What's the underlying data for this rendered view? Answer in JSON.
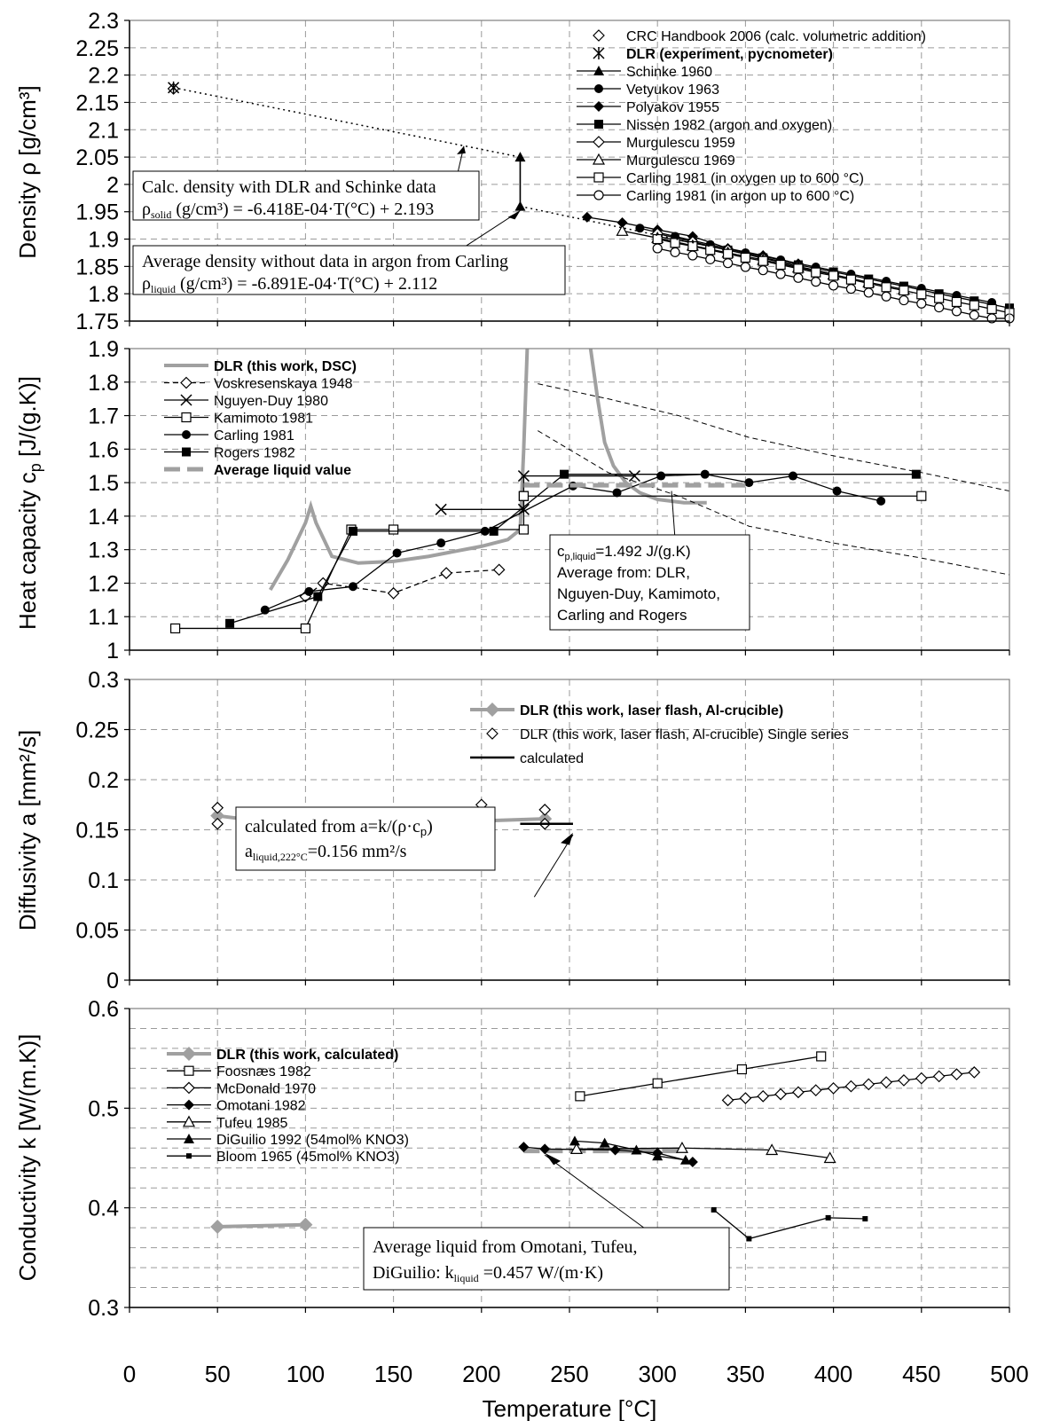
{
  "x_axis": {
    "label": "Temperature [°C]",
    "ticks": [
      "0",
      "50",
      "100",
      "150",
      "200",
      "250",
      "300",
      "350",
      "400",
      "450",
      "500"
    ],
    "range": [
      0,
      500
    ]
  },
  "chart_data": [
    {
      "type": "line",
      "ylabel": "Density ρ [g/cm³]",
      "ylim": [
        1.75,
        2.3
      ],
      "yticks": [
        "1.75",
        "1.8",
        "1.85",
        "1.9",
        "1.95",
        "2",
        "2.05",
        "2.1",
        "2.15",
        "2.2",
        "2.25",
        "2.3"
      ],
      "legend_position": "top-right",
      "series": [
        {
          "name": "CRC Handbook 2006 (calc. volumetric addition)",
          "marker": "diamond-open",
          "x": [
            25
          ],
          "y": [
            2.175
          ]
        },
        {
          "name": "DLR (experiment, pycnometer)",
          "bold": true,
          "marker": "asterisk",
          "x": [
            25
          ],
          "y": [
            2.177
          ]
        },
        {
          "name": "Schinke 1960",
          "marker": "triangle-filled",
          "x": [
            222,
            222
          ],
          "y": [
            2.05,
            1.96
          ]
        },
        {
          "name": "Vetyukov 1963",
          "marker": "circle-filled",
          "x": [
            290,
            310,
            330,
            350,
            370,
            390,
            410,
            430,
            450,
            470,
            490
          ],
          "y": [
            1.92,
            1.905,
            1.89,
            1.875,
            1.862,
            1.849,
            1.836,
            1.823,
            1.81,
            1.797,
            1.784
          ]
        },
        {
          "name": "Polyakov 1955",
          "marker": "diamond-filled",
          "x": [
            260,
            280,
            300,
            320,
            340,
            360,
            380
          ],
          "y": [
            1.94,
            1.93,
            1.917,
            1.905,
            1.883,
            1.87,
            1.855
          ]
        },
        {
          "name": "Nissen 1982 (argon and oxygen)",
          "marker": "square-filled",
          "x": [
            300,
            320,
            340,
            360,
            380,
            400,
            420,
            440,
            460,
            480,
            500
          ],
          "y": [
            1.905,
            1.893,
            1.88,
            1.866,
            1.853,
            1.84,
            1.827,
            1.814,
            1.8,
            1.787,
            1.774
          ]
        },
        {
          "name": "Murgulescu 1959",
          "marker": "diamond-open",
          "x": [
            300,
            320,
            340,
            360,
            380,
            400
          ],
          "y": [
            1.91,
            1.895,
            1.88,
            1.865,
            1.85,
            1.836
          ]
        },
        {
          "name": "Murgulescu 1969",
          "marker": "triangle-open",
          "x": [
            280,
            300,
            320,
            340,
            360,
            380,
            400,
            420,
            440
          ],
          "y": [
            1.915,
            1.902,
            1.888,
            1.875,
            1.862,
            1.848,
            1.835,
            1.821,
            1.808
          ]
        },
        {
          "name": "Carling 1981 (in oxygen up to 600 °C)",
          "marker": "square-open",
          "x": [
            300,
            310,
            320,
            330,
            340,
            350,
            360,
            370,
            380,
            390,
            400,
            410,
            420,
            430,
            440,
            450,
            460,
            470,
            480,
            490,
            500
          ],
          "y": [
            1.9,
            1.893,
            1.887,
            1.88,
            1.873,
            1.866,
            1.86,
            1.853,
            1.846,
            1.839,
            1.833,
            1.826,
            1.819,
            1.812,
            1.806,
            1.799,
            1.792,
            1.785,
            1.779,
            1.772,
            1.765
          ]
        },
        {
          "name": "Carling 1981 (in argon up to 600 °C)",
          "marker": "circle-open",
          "x": [
            300,
            310,
            320,
            330,
            340,
            350,
            360,
            370,
            380,
            390,
            400,
            410,
            420,
            430,
            440,
            450,
            460,
            470,
            480,
            490,
            500
          ],
          "y": [
            1.883,
            1.876,
            1.87,
            1.863,
            1.856,
            1.849,
            1.843,
            1.836,
            1.829,
            1.822,
            1.815,
            1.809,
            1.802,
            1.795,
            1.788,
            1.782,
            1.775,
            1.768,
            1.761,
            1.755,
            1.755
          ]
        }
      ],
      "annotations": [
        {
          "line1": "Calc. density with DLR and Schinke data",
          "line2_main": "ρ",
          "line2_sub": "solid",
          "line2_rest": " (g/cm³) = -6.418E-04·T(°C) + 2.193"
        },
        {
          "line1": "Average density without data in argon from Carling",
          "line2_main": "ρ",
          "line2_sub": "liquid",
          "line2_rest": " (g/cm³) = -6.891E-04·T(°C) + 2.112"
        }
      ]
    },
    {
      "type": "line",
      "ylabel_main": "Heat capacity c",
      "ylabel_sub": "p",
      "ylabel_rest": " [J/(g.K)]",
      "ylim": [
        1,
        1.9
      ],
      "yticks": [
        "1",
        "1.1",
        "1.2",
        "1.3",
        "1.4",
        "1.5",
        "1.6",
        "1.7",
        "1.8",
        "1.9"
      ],
      "legend_position": "top-left",
      "series": [
        {
          "name": "DLR (this work, DSC)",
          "bold": true,
          "marker": "thick-gray-line",
          "x": [
            80,
            90,
            100,
            103,
            106,
            115,
            130,
            150,
            170,
            200,
            215,
            222,
            224,
            225,
            226
          ],
          "y": [
            1.18,
            1.27,
            1.38,
            1.43,
            1.38,
            1.28,
            1.26,
            1.265,
            1.28,
            1.31,
            1.33,
            1.36,
            1.6,
            1.75,
            1.9
          ]
        },
        {
          "name": "Voskresenskaya 1948",
          "marker": "diamond-open",
          "x": [
            100,
            110,
            150,
            180,
            210
          ],
          "y": [
            1.16,
            1.2,
            1.17,
            1.23,
            1.24
          ]
        },
        {
          "name": "Nguyen-Duy 1980",
          "marker": "cross",
          "x": [
            177,
            224,
            224,
            287
          ],
          "y": [
            1.42,
            1.42,
            1.52,
            1.52
          ]
        },
        {
          "name": "Kamimoto 1981",
          "marker": "square-open",
          "x": [
            26,
            100,
            126,
            150,
            224,
            224,
            224,
            450
          ],
          "y": [
            1.065,
            1.065,
            1.36,
            1.36,
            1.36,
            1.46,
            1.46,
            1.46
          ]
        },
        {
          "name": "Carling 1981",
          "marker": "circle-filled",
          "x": [
            77,
            102,
            127,
            152,
            177,
            202,
            252,
            277,
            302,
            327,
            352,
            377,
            402,
            427
          ],
          "y": [
            1.12,
            1.175,
            1.19,
            1.29,
            1.32,
            1.355,
            1.49,
            1.47,
            1.52,
            1.525,
            1.5,
            1.52,
            1.475,
            1.445
          ]
        },
        {
          "name": "Rogers 1982",
          "marker": "square-filled",
          "x": [
            57,
            107,
            127,
            207,
            247,
            447
          ],
          "y": [
            1.08,
            1.16,
            1.355,
            1.355,
            1.525,
            1.525
          ]
        },
        {
          "name": "Average liquid value",
          "bold": true,
          "marker": "dashed-gray",
          "x": [
            224,
            350
          ],
          "y": [
            1.492,
            1.492
          ]
        }
      ],
      "extra_curves": [
        {
          "name": "DLR decline",
          "x": [
            262,
            266,
            270,
            275,
            282,
            290,
            300,
            315,
            328
          ],
          "y": [
            1.9,
            1.75,
            1.62,
            1.55,
            1.5,
            1.47,
            1.45,
            1.44,
            1.44
          ]
        },
        {
          "name": "Voskresenskaya upper",
          "x": [
            232,
            272,
            312,
            352,
            400,
            450,
            500
          ],
          "y": [
            1.795,
            1.75,
            1.7,
            1.635,
            1.58,
            1.53,
            1.475
          ]
        },
        {
          "name": "Voskresenskaya lower",
          "x": [
            232,
            272,
            312,
            352,
            400,
            450,
            500
          ],
          "y": [
            1.655,
            1.53,
            1.46,
            1.37,
            1.32,
            1.275,
            1.225
          ]
        }
      ],
      "annotation": {
        "line1_main": "c",
        "line1_sub": "p,liquid",
        "line1_rest": "=1.492 J/(g.K)",
        "line2": "Average from: DLR,",
        "line3": "Nguyen-Duy, Kamimoto,",
        "line4": "Carling and Rogers"
      }
    },
    {
      "type": "line",
      "ylabel": "Diffusivity a [mm²/s]",
      "ylim": [
        0,
        0.3
      ],
      "yticks": [
        "0",
        "0.05",
        "0.1",
        "0.15",
        "0.2",
        "0.25",
        "0.3"
      ],
      "legend_position": "top-right",
      "series": [
        {
          "name": "DLR (this work, laser flash, Al-crucible)",
          "bold": true,
          "marker": "diamond-gray",
          "x": [
            50,
            100,
            236
          ],
          "y": [
            0.164,
            0.153,
            0.161
          ]
        },
        {
          "name": "DLR (this work, laser flash, Al-crucible) Single series",
          "marker": "diamond-open",
          "x": [
            50,
            50,
            100,
            100,
            200,
            236,
            236
          ],
          "y": [
            0.156,
            0.172,
            0.141,
            0.166,
            0.175,
            0.156,
            0.17
          ]
        },
        {
          "name": "calculated",
          "marker": "black-line",
          "x": [
            222,
            252
          ],
          "y": [
            0.156,
            0.156
          ]
        }
      ],
      "annotation": {
        "line1": "calculated from a=k/(ρ·c",
        "line1_sub": "p",
        "line1_end": ")",
        "line2_main": "a",
        "line2_sub": "liquid,222°C",
        "line2_rest": "=0.156 mm²/s"
      }
    },
    {
      "type": "line",
      "ylabel": "Conductivity k [W/(m.K)]",
      "ylim": [
        0.3,
        0.6
      ],
      "yticks": [
        "0.3",
        "0.4",
        "0.5",
        "0.6"
      ],
      "legend_position": "top-left",
      "series": [
        {
          "name": "DLR (this work, calculated)",
          "bold": true,
          "marker": "diamond-gray",
          "x": [
            50,
            100
          ],
          "y": [
            0.381,
            0.383
          ]
        },
        {
          "name": "Foosnæs 1982",
          "marker": "square-open",
          "x": [
            256,
            300,
            348,
            393
          ],
          "y": [
            0.512,
            0.525,
            0.539,
            0.552
          ]
        },
        {
          "name": "McDonald 1970",
          "marker": "diamond-open",
          "x": [
            340,
            350,
            360,
            370,
            380,
            390,
            400,
            410,
            420,
            430,
            440,
            450,
            460,
            470,
            480
          ],
          "y": [
            0.508,
            0.51,
            0.512,
            0.514,
            0.516,
            0.518,
            0.52,
            0.522,
            0.524,
            0.526,
            0.528,
            0.53,
            0.532,
            0.534,
            0.536
          ]
        },
        {
          "name": "Omotani 1982",
          "marker": "diamond-filled",
          "x": [
            224,
            236,
            276,
            300,
            320
          ],
          "y": [
            0.461,
            0.459,
            0.458,
            0.455,
            0.446
          ]
        },
        {
          "name": "Tufeu 1985",
          "marker": "triangle-open",
          "x": [
            254,
            314,
            365,
            398
          ],
          "y": [
            0.459,
            0.46,
            0.458,
            0.45
          ]
        },
        {
          "name": "DiGuilio 1992 (54mol% KNO3)",
          "marker": "triangle-filled",
          "x": [
            253,
            270,
            288,
            300,
            316
          ],
          "y": [
            0.467,
            0.465,
            0.458,
            0.452,
            0.448
          ]
        },
        {
          "name": "Bloom 1965 (45mol% KNO3)",
          "marker": "small-square-filled",
          "x": [
            332,
            352,
            397,
            418
          ],
          "y": [
            0.398,
            0.369,
            0.39,
            0.389
          ]
        }
      ],
      "extra_curves": [
        {
          "name": "Average liquid",
          "x": [
            224,
            316
          ],
          "y": [
            0.457,
            0.457
          ]
        }
      ],
      "annotation": {
        "line1": "Average liquid from Omotani, Tufeu,",
        "line2_main": "DiGuilio: k",
        "line2_sub": "liquid",
        "line2_rest": " =0.457 W/(m·K)"
      }
    }
  ]
}
